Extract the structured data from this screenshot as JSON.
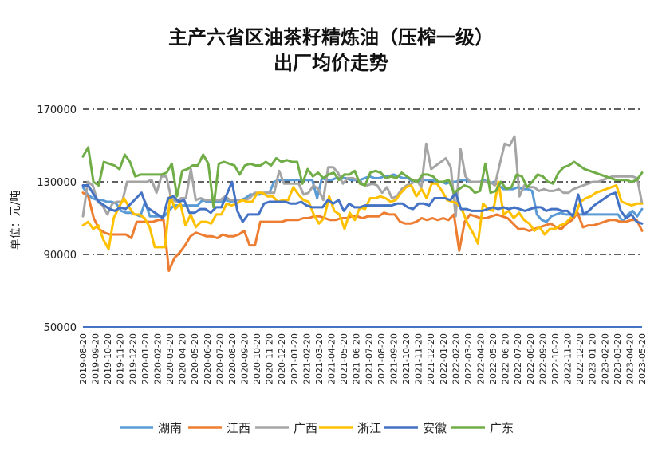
{
  "chart_data": {
    "type": "line",
    "title_lines": [
      "主产六省区油茶籽精炼油（压榨一级）",
      "出厂均价走势"
    ],
    "ylabel": "单位：元/吨",
    "ylim": [
      50000,
      170000
    ],
    "yticks": [
      50000,
      90000,
      130000,
      170000
    ],
    "ytick_labels": [
      "50000",
      "90000",
      "130000",
      "170000"
    ],
    "grid": "dash-dot horizontal",
    "legend_position": "bottom",
    "x_start": "2019-08-20",
    "x_end": "2023-05-20",
    "x_ticks": [
      "2019-08-20",
      "2019-09-20",
      "2019-10-20",
      "2019-11-20",
      "2019-12-20",
      "2020-01-20",
      "2020-02-20",
      "2020-03-20",
      "2020-04-20",
      "2020-05-20",
      "2020-06-20",
      "2020-07-20",
      "2020-08-20",
      "2020-09-20",
      "2020-10-20",
      "2020-11-20",
      "2020-12-20",
      "2021-01-20",
      "2021-02-20",
      "2021-03-20",
      "2021-04-20",
      "2021-05-20",
      "2021-06-20",
      "2021-07-20",
      "2021-08-20",
      "2021-09-20",
      "2021-10-20",
      "2021-11-20",
      "2021-12-20",
      "2022-01-20",
      "2022-02-20",
      "2022-03-20",
      "2022-04-20",
      "2022-05-20",
      "2022-06-20",
      "2022-07-20",
      "2022-08-20",
      "2022-09-20",
      "2022-10-20",
      "2022-11-20",
      "2022-12-20",
      "2023-01-20",
      "2023-02-20",
      "2023-03-20",
      "2023-04-20",
      "2023-05-20"
    ],
    "series": [
      {
        "name": "湖南",
        "color": "#5B9BD5",
        "values": [
          127000,
          123000,
          121000,
          120000,
          120000,
          119000,
          119000,
          118000,
          114000,
          113000,
          113000,
          112000,
          111000,
          119000,
          111000,
          111000,
          111000,
          111000,
          114000,
          117000,
          117000,
          117000,
          117000,
          117000,
          117000,
          120000,
          119000,
          119000,
          119000,
          119000,
          120000,
          119000,
          120000,
          120000,
          121000,
          123000,
          123000,
          123000,
          124000,
          124000,
          130000,
          131000,
          131000,
          131000,
          131000,
          131000,
          131000,
          131000,
          131000,
          121000,
          132000,
          131000,
          131000,
          132000,
          132000,
          132000,
          131000,
          131000,
          131000,
          132000,
          133000,
          132000,
          132000,
          133000,
          133000,
          134000,
          133000,
          132000,
          132000,
          130000,
          130000,
          131000,
          131000,
          131000,
          130000,
          130000,
          129000,
          130000,
          130000,
          131000,
          131000,
          130000,
          130000,
          130000,
          131000,
          129000,
          130000,
          128000,
          126000,
          126000,
          126000,
          127000,
          126000,
          126000,
          125000,
          112000,
          109000,
          108000,
          111000,
          112000,
          113000,
          112000,
          112000,
          112000,
          112000,
          112000,
          112000,
          112000,
          112000,
          112000,
          112000,
          112000,
          112000,
          108000,
          112000,
          114000,
          111000,
          115000
        ]
      },
      {
        "name": "江西",
        "color": "#ED7D31",
        "values": [
          124000,
          122000,
          110000,
          104000,
          102000,
          101000,
          101000,
          101000,
          101000,
          99000,
          108000,
          108000,
          108000,
          108000,
          109000,
          109000,
          81000,
          88000,
          91000,
          95000,
          100000,
          102000,
          101000,
          100000,
          100000,
          99000,
          101000,
          100000,
          100000,
          101000,
          103000,
          95000,
          95000,
          108000,
          108000,
          108000,
          108000,
          108000,
          109000,
          109000,
          109000,
          110000,
          110000,
          111000,
          111000,
          110000,
          109000,
          109000,
          110000,
          110000,
          111000,
          111000,
          110000,
          111000,
          111000,
          111000,
          113000,
          112000,
          112000,
          108000,
          107000,
          107000,
          108000,
          110000,
          109000,
          110000,
          109000,
          110000,
          109000,
          112000,
          92000,
          108000,
          112000,
          111000,
          110000,
          110000,
          111000,
          112000,
          111000,
          110000,
          107000,
          104000,
          104000,
          103000,
          104000,
          105000,
          106000,
          107000,
          105000,
          104000,
          107000,
          109000,
          113000,
          105000,
          106000,
          106000,
          107000,
          108000,
          109000,
          109000,
          108000,
          108000,
          109000,
          109000,
          103000
        ]
      },
      {
        "name": "广西",
        "color": "#A5A5A5",
        "values": [
          111000,
          130000,
          128000,
          119000,
          117000,
          112000,
          118000,
          119000,
          119000,
          130000,
          130000,
          130000,
          130000,
          130000,
          131000,
          124000,
          133000,
          133000,
          121000,
          119000,
          121000,
          121000,
          137000,
          120000,
          121000,
          120000,
          120000,
          120000,
          120000,
          122000,
          120000,
          120000,
          120000,
          120000,
          121000,
          124000,
          124000,
          124000,
          124000,
          124000,
          136000,
          129000,
          129000,
          129000,
          129000,
          123000,
          124000,
          128000,
          126000,
          120000,
          138000,
          138000,
          135000,
          129000,
          132000,
          132000,
          131000,
          129000,
          128000,
          129000,
          128000,
          124000,
          127000,
          121000,
          122000,
          126000,
          128000,
          129000,
          131000,
          127000,
          151000,
          137000,
          139000,
          141000,
          143000,
          138000,
          111000,
          148000,
          133000,
          130000,
          130000,
          130000,
          130000,
          130000,
          128000,
          140000,
          151000,
          150000,
          155000,
          122000,
          128000,
          127000,
          127000,
          125000,
          126000,
          125000,
          125000,
          126000,
          124000,
          124000,
          126000,
          127000,
          128000,
          129000,
          130000,
          130000,
          131000,
          132000,
          133000,
          133000,
          133000,
          133000,
          133000,
          132000,
          118000
        ]
      },
      {
        "name": "浙江",
        "color": "#FFC000",
        "values": [
          106000,
          108000,
          104000,
          106000,
          98000,
          93000,
          110000,
          116000,
          121000,
          116000,
          112000,
          112000,
          110000,
          105000,
          94000,
          94000,
          94000,
          122000,
          115000,
          118000,
          106000,
          112000,
          105000,
          108000,
          108000,
          107000,
          112000,
          112000,
          118000,
          117000,
          118000,
          120000,
          119000,
          119000,
          124000,
          124000,
          122000,
          122000,
          119000,
          120000,
          120000,
          127000,
          123000,
          120000,
          119000,
          112000,
          107000,
          110000,
          122000,
          114000,
          112000,
          104000,
          113000,
          109000,
          116000,
          115000,
          121000,
          121000,
          122000,
          121000,
          119000,
          120000,
          124000,
          127000,
          128000,
          122000,
          126000,
          121000,
          129000,
          129000,
          125000,
          120000,
          119000,
          118000,
          114000,
          107000,
          102000,
          96000,
          118000,
          115000,
          114000,
          130000,
          112000,
          114000,
          110000,
          113000,
          109000,
          107000,
          103000,
          105000,
          101000,
          104000,
          104000,
          106000,
          107000,
          110000,
          112000,
          119000,
          121000,
          122000,
          124000,
          125000,
          126000,
          127000,
          128000,
          119000,
          118000,
          117000,
          118000,
          118000
        ]
      },
      {
        "name": "安徽",
        "color": "#4472C4",
        "values": [
          128000,
          128000,
          123000,
          119000,
          117000,
          115000,
          114000,
          116000,
          115000,
          118000,
          121000,
          124000,
          116000,
          114000,
          112000,
          110000,
          121000,
          122000,
          119000,
          120000,
          113000,
          113000,
          115000,
          115000,
          113000,
          116000,
          116000,
          123000,
          130000,
          114000,
          108000,
          112000,
          112000,
          112000,
          118000,
          119000,
          119000,
          119000,
          119000,
          118000,
          118000,
          119000,
          117000,
          116000,
          116000,
          116000,
          120000,
          118000,
          120000,
          114000,
          118000,
          116000,
          116000,
          117000,
          117000,
          117000,
          117000,
          117000,
          117000,
          118000,
          118000,
          116000,
          115000,
          118000,
          118000,
          117000,
          121000,
          121000,
          121000,
          120000,
          124000,
          115000,
          115000,
          114000,
          114000,
          114000,
          115000,
          116000,
          115000,
          116000,
          115000,
          116000,
          115000,
          114000,
          115000,
          116000,
          116000,
          114000,
          115000,
          115000,
          114000,
          114000,
          111000,
          123000,
          112000,
          114000,
          117000,
          119000,
          121000,
          123000,
          124000,
          114000,
          110000,
          112000,
          108000,
          107000
        ]
      },
      {
        "name": "广东",
        "color": "#70AD47",
        "values": [
          144000,
          149000,
          130000,
          128000,
          141000,
          140000,
          139000,
          137000,
          145000,
          141000,
          133000,
          134000,
          134000,
          134000,
          134000,
          134000,
          135000,
          140000,
          122000,
          136000,
          137000,
          139000,
          139000,
          145000,
          140000,
          116000,
          140000,
          141000,
          140000,
          139000,
          134000,
          139000,
          140000,
          139000,
          139000,
          141000,
          139000,
          143000,
          141000,
          142000,
          141000,
          141000,
          129000,
          137000,
          133000,
          135000,
          132000,
          134000,
          135000,
          131000,
          134000,
          134000,
          136000,
          129000,
          128000,
          135000,
          136000,
          135000,
          132000,
          133000,
          132000,
          135000,
          133000,
          131000,
          130000,
          134000,
          134000,
          133000,
          130000,
          130000,
          131000,
          124000,
          126000,
          128000,
          127000,
          124000,
          125000,
          140000,
          124000,
          125000,
          130000,
          126000,
          127000,
          134000,
          133000,
          127000,
          130000,
          134000,
          133000,
          130000,
          129000,
          135000,
          138000,
          139000,
          141000,
          139000,
          137000,
          136000,
          135000,
          134000,
          133000,
          132000,
          131000,
          131000,
          131000,
          130000,
          131000,
          135000
        ]
      }
    ]
  }
}
